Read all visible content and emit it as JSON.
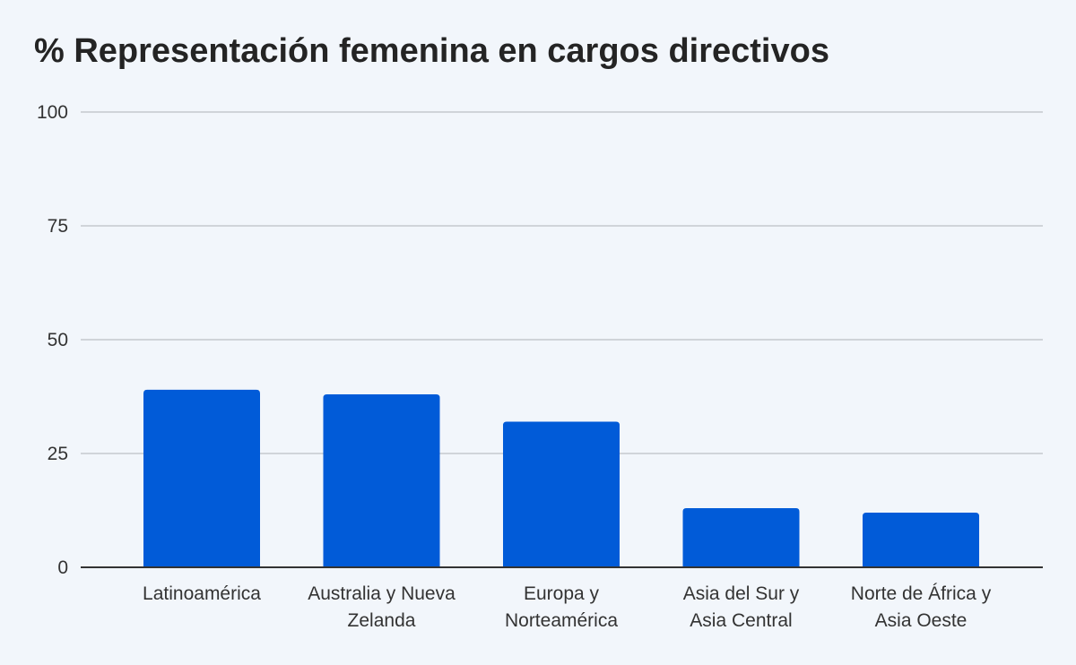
{
  "chart_data": {
    "type": "bar",
    "title": "% Representación femenina en cargos directivos",
    "xlabel": "",
    "ylabel": "",
    "ylim": [
      0,
      100
    ],
    "yticks": [
      0,
      25,
      50,
      75,
      100
    ],
    "grid": true,
    "bar_color": "#015bd8",
    "categories": [
      [
        "Latinoamérica"
      ],
      [
        "Australia y Nueva",
        "Zelanda"
      ],
      [
        "Europa y",
        "Norteamérica"
      ],
      [
        "Asia del Sur y",
        "Asia Central"
      ],
      [
        "Norte de África y",
        "Asia Oeste"
      ]
    ],
    "values": [
      39,
      38,
      32,
      13,
      12
    ]
  }
}
